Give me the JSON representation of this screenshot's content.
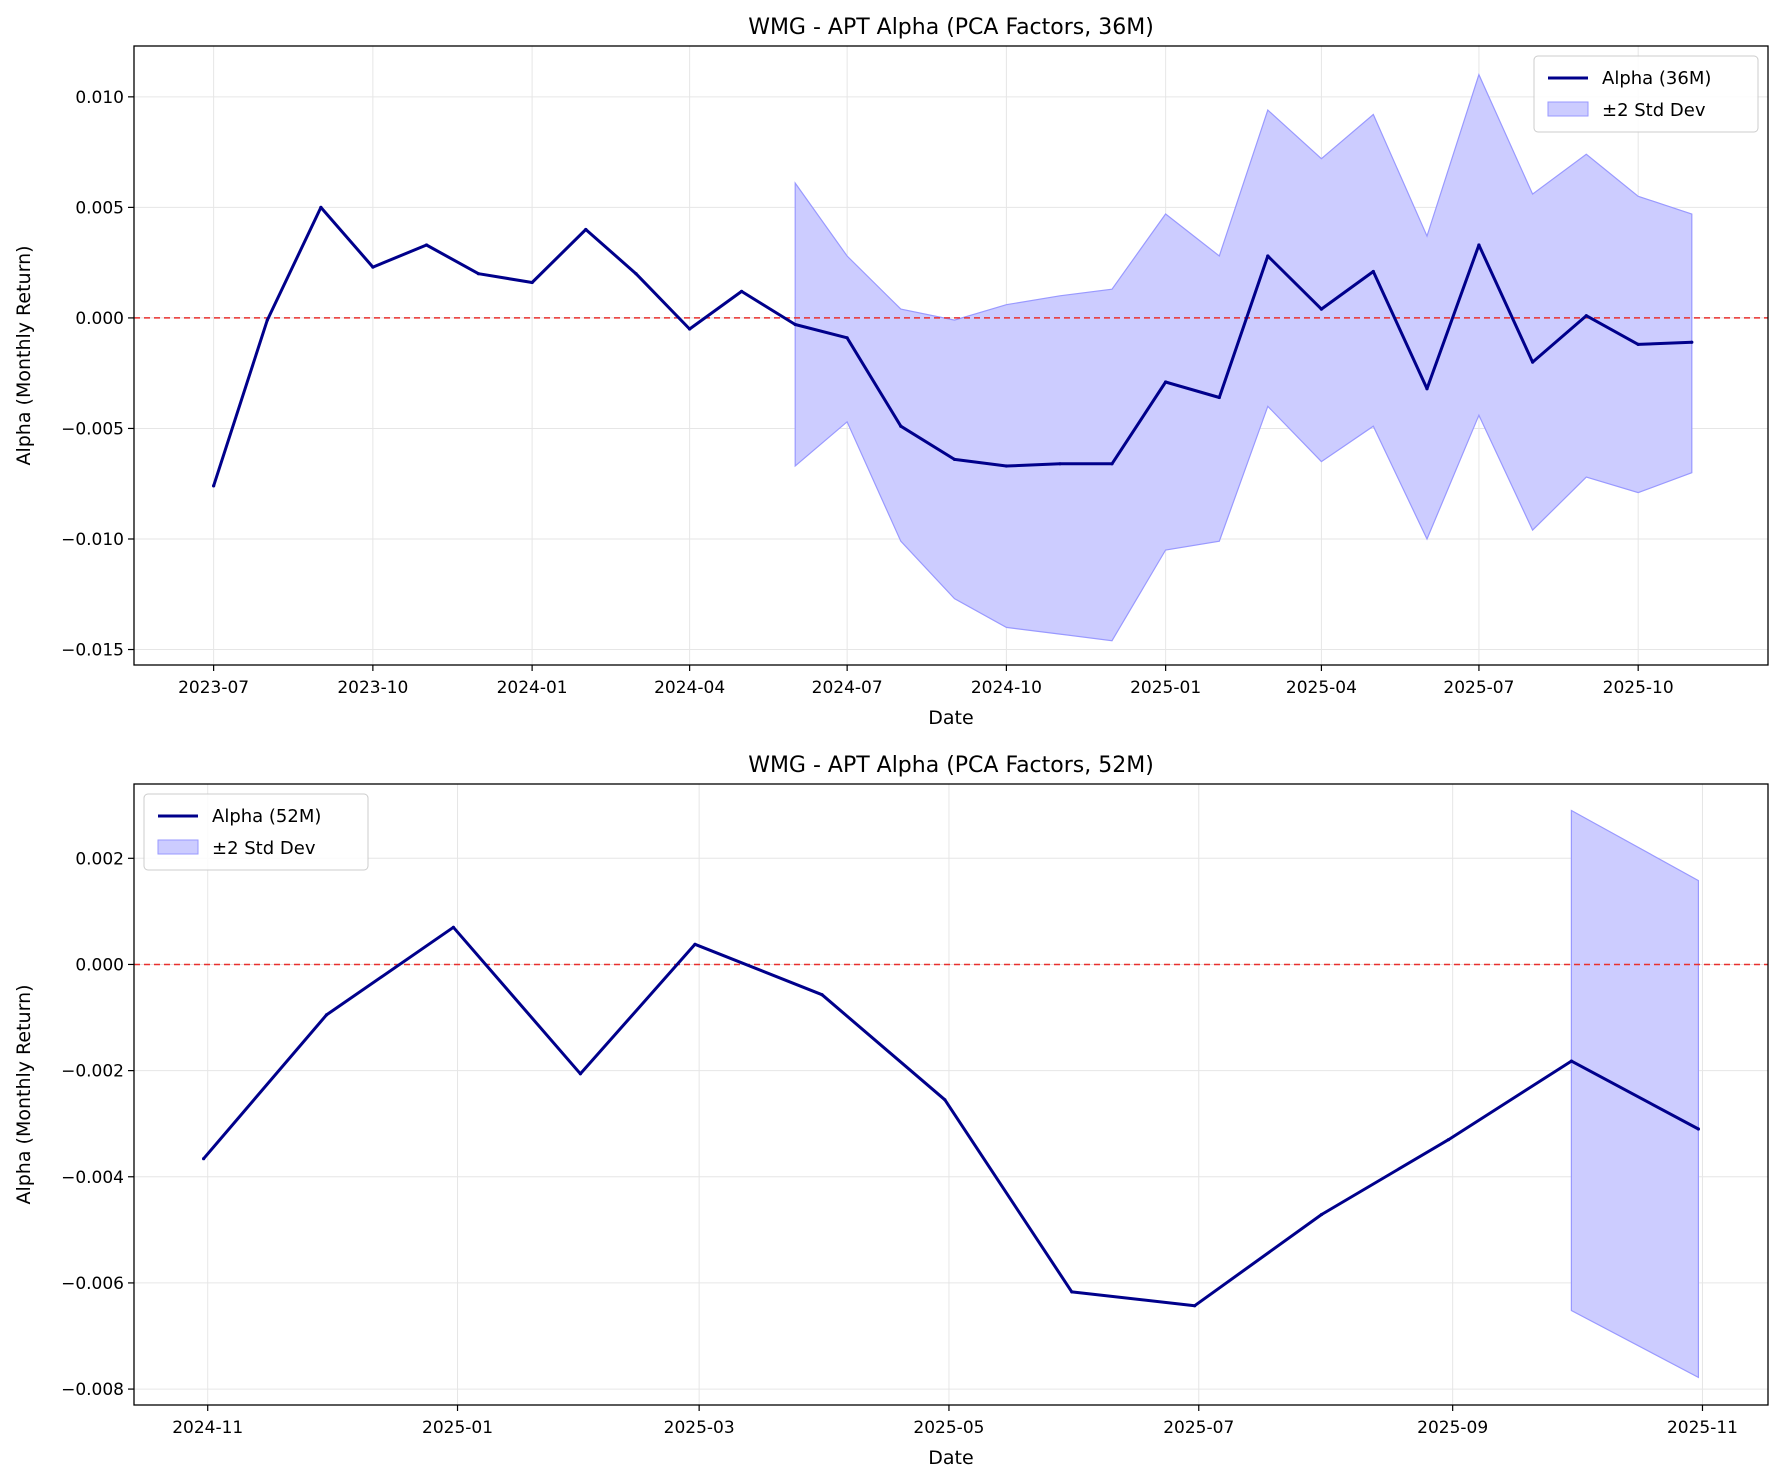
{
  "colors": {
    "alpha_line": "#00008b",
    "band_fill": "#ccccff",
    "band_edge": "#9999ff",
    "zero_line": "#e8302f",
    "grid": "#e6e6e6"
  },
  "chart_data": [
    {
      "type": "line",
      "title": "WMG - APT Alpha (PCA Factors, 36M)",
      "xlabel": "Date",
      "ylabel": "Alpha (Monthly Return)",
      "xlim": [
        "2023-05-16",
        "2025-12-15"
      ],
      "ylim": [
        -0.0157,
        0.0123
      ],
      "x_ticks": [
        "2023-07-01",
        "2023-10-01",
        "2024-01-01",
        "2024-04-01",
        "2024-07-01",
        "2024-10-01",
        "2025-01-01",
        "2025-04-01",
        "2025-07-01",
        "2025-10-01"
      ],
      "x_tick_labels": [
        "2023-07",
        "2023-10",
        "2024-01",
        "2024-04",
        "2024-07",
        "2024-10",
        "2025-01",
        "2025-04",
        "2025-07",
        "2025-10"
      ],
      "y_ticks": [
        -0.015,
        -0.01,
        -0.005,
        0.0,
        0.005,
        0.01
      ],
      "y_tick_labels": [
        "−0.015",
        "−0.010",
        "−0.005",
        "0.000",
        "0.005",
        "0.010"
      ],
      "grid": true,
      "legend_position": "top-right",
      "reference_line": 0.0,
      "series": [
        {
          "name": "Alpha (36M)",
          "x": [
            "2023-07-01",
            "2023-08-01",
            "2023-09-01",
            "2023-10-01",
            "2023-11-01",
            "2023-12-01",
            "2024-01-01",
            "2024-02-01",
            "2024-03-01",
            "2024-04-01",
            "2024-05-01",
            "2024-06-01",
            "2024-07-01",
            "2024-08-01",
            "2024-09-01",
            "2024-10-01",
            "2024-11-01",
            "2024-12-01",
            "2025-01-01",
            "2025-02-01",
            "2025-03-01",
            "2025-04-01",
            "2025-05-01",
            "2025-06-01",
            "2025-07-01",
            "2025-08-01",
            "2025-09-01",
            "2025-10-01",
            "2025-11-01"
          ],
          "y": [
            -0.0076,
            -0.0001,
            0.005,
            0.0023,
            0.0033,
            0.002,
            0.0016,
            0.004,
            0.002,
            -0.0005,
            0.0012,
            -0.0003,
            -0.0009,
            -0.0049,
            -0.0064,
            -0.0067,
            -0.0066,
            -0.0066,
            -0.0029,
            -0.0036,
            0.0028,
            0.0004,
            0.0021,
            -0.0032,
            0.0033,
            -0.002,
            0.0001,
            -0.0012,
            -0.0011
          ]
        }
      ],
      "band": {
        "name": "±2 Std Dev",
        "x": [
          "2024-06-01",
          "2024-07-01",
          "2024-08-01",
          "2024-09-01",
          "2024-10-01",
          "2024-11-01",
          "2024-12-01",
          "2025-01-01",
          "2025-02-01",
          "2025-03-01",
          "2025-04-01",
          "2025-05-01",
          "2025-06-01",
          "2025-07-01",
          "2025-08-01",
          "2025-09-01",
          "2025-10-01",
          "2025-11-01"
        ],
        "upper": [
          0.0061,
          0.0028,
          0.0004,
          -0.0001,
          0.0006,
          0.001,
          0.0013,
          0.0047,
          0.0028,
          0.0094,
          0.0072,
          0.0092,
          0.0037,
          0.011,
          0.0056,
          0.0074,
          0.0055,
          0.0047
        ],
        "lower": [
          -0.0067,
          -0.0047,
          -0.0101,
          -0.0127,
          -0.014,
          -0.0143,
          -0.0146,
          -0.0105,
          -0.0101,
          -0.004,
          -0.0065,
          -0.0049,
          -0.01,
          -0.0044,
          -0.0096,
          -0.0072,
          -0.0079,
          -0.007
        ]
      }
    },
    {
      "type": "line",
      "title": "WMG - APT Alpha (PCA Factors, 52M)",
      "xlabel": "Date",
      "ylabel": "Alpha (Monthly Return)",
      "xlim": [
        "2024-10-14",
        "2025-11-17"
      ],
      "ylim": [
        -0.0083,
        0.0034
      ],
      "x_ticks": [
        "2024-11-01",
        "2025-01-01",
        "2025-03-01",
        "2025-05-01",
        "2025-07-01",
        "2025-09-01",
        "2025-11-01"
      ],
      "x_tick_labels": [
        "2024-11",
        "2025-01",
        "2025-03",
        "2025-05",
        "2025-07",
        "2025-09",
        "2025-11"
      ],
      "y_ticks": [
        -0.008,
        -0.006,
        -0.004,
        -0.002,
        0.0,
        0.002
      ],
      "y_tick_labels": [
        "−0.008",
        "−0.006",
        "−0.004",
        "−0.002",
        "0.000",
        "0.002"
      ],
      "grid": true,
      "legend_position": "top-left",
      "reference_line": 0.0,
      "series": [
        {
          "name": "Alpha (52M)",
          "x": [
            "2024-10-31",
            "2024-11-30",
            "2024-12-31",
            "2025-01-31",
            "2025-02-28",
            "2025-03-31",
            "2025-04-30",
            "2025-05-31",
            "2025-06-30",
            "2025-07-31",
            "2025-08-31",
            "2025-09-30",
            "2025-10-31"
          ],
          "y": [
            -0.00366,
            -0.00095,
            0.0007,
            -0.00206,
            0.00038,
            -0.00057,
            -0.00255,
            -0.00617,
            -0.00643,
            -0.00471,
            -0.0033,
            -0.00182,
            -0.0031
          ]
        }
      ],
      "band": {
        "name": "±2 Std Dev",
        "x": [
          "2025-09-30",
          "2025-10-31"
        ],
        "upper": [
          0.0029,
          0.00158
        ],
        "lower": [
          -0.00652,
          -0.00778
        ]
      }
    }
  ]
}
